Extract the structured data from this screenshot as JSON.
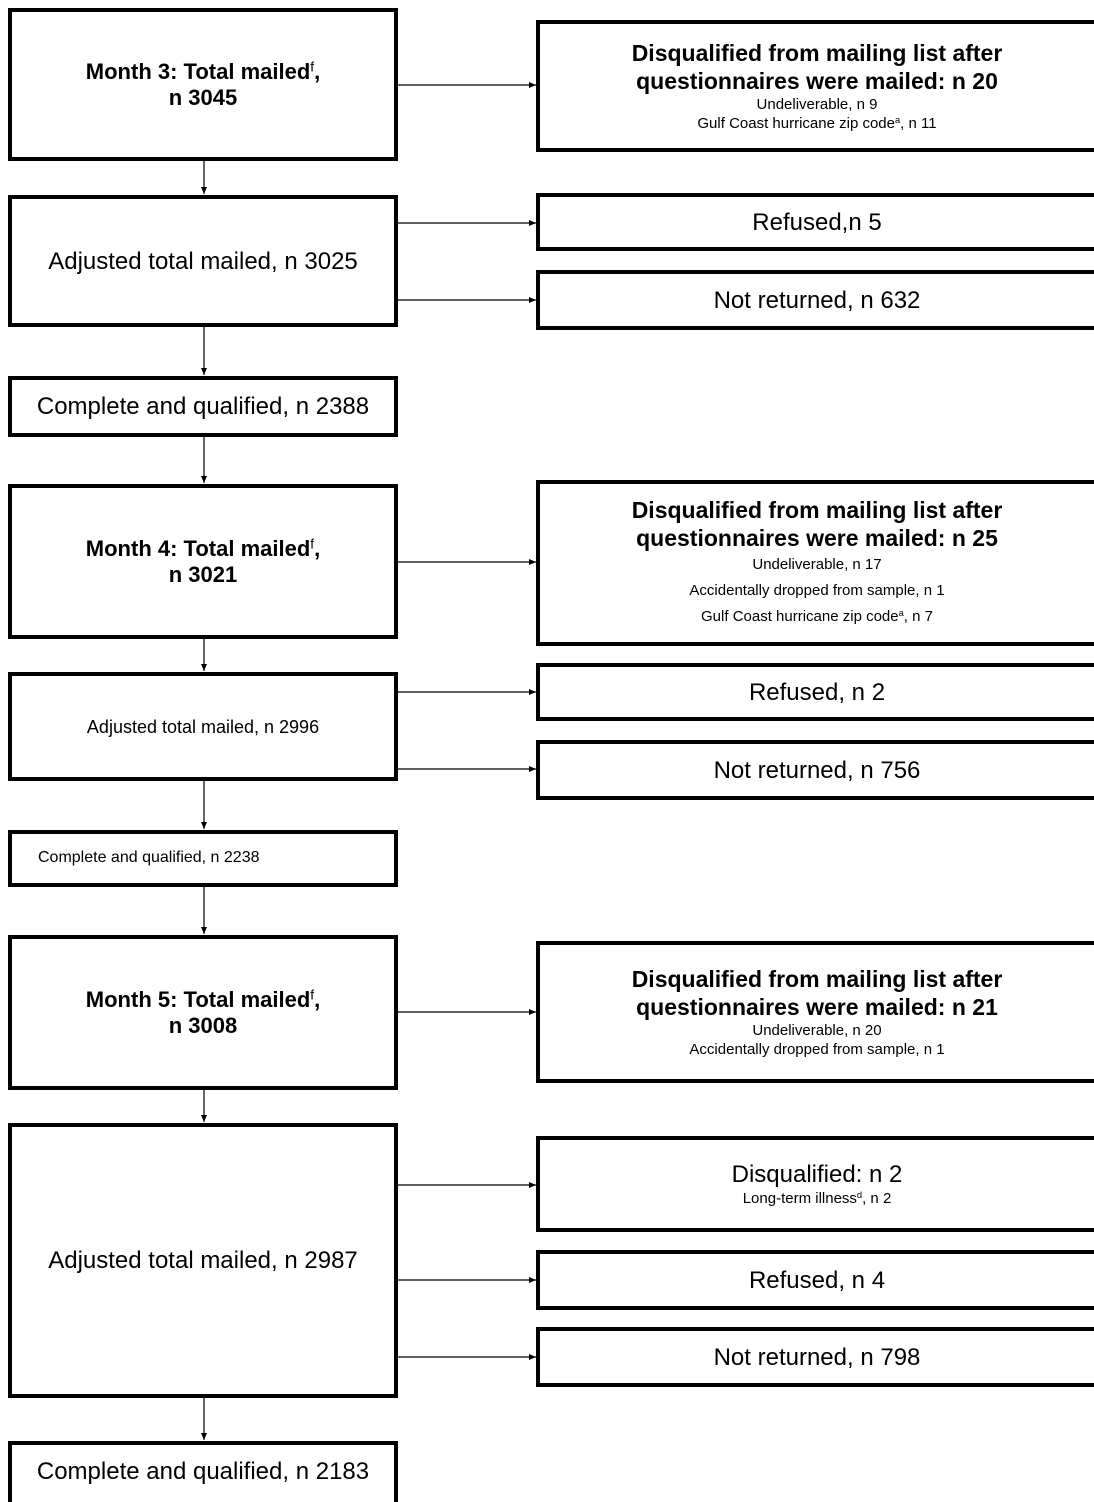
{
  "month3": {
    "total": {
      "label": "Month 3: Total mailed",
      "sup": "f",
      "suffix": ",",
      "n": "n 3045"
    },
    "disq": {
      "title1": "Disqualified from mailing list after",
      "title2": "questionnaires were mailed: n 20",
      "d1": "Undeliverable, n 9",
      "d2_text": "Gulf Coast hurricane zip code",
      "d2_sup": "a",
      "d2_n": ", n 11"
    },
    "adjusted": "Adjusted total mailed, n 3025",
    "refused": "Refused,n 5",
    "not_returned": "Not returned, n 632",
    "complete": "Complete and qualified, n 2388"
  },
  "month4": {
    "total": {
      "label": "Month 4: Total mailed",
      "sup": "f",
      "suffix": ",",
      "n": "n 3021"
    },
    "disq": {
      "title1": "Disqualified from mailing list after",
      "title2": "questionnaires were mailed: n 25",
      "d1": "Undeliverable, n 17",
      "d2": "Accidentally dropped from sample, n 1",
      "d3_text": "Gulf Coast hurricane zip code",
      "d3_sup": "a",
      "d3_n": ", n 7"
    },
    "adjusted": "Adjusted total mailed, n 2996",
    "refused": "Refused, n 2",
    "not_returned": "Not returned, n 756",
    "complete": "Complete and qualified, n 2238"
  },
  "month5": {
    "total": {
      "label": "Month 5: Total mailed",
      "sup": "f",
      "suffix": ",",
      "n": "n 3008"
    },
    "disq": {
      "title1": "Disqualified from mailing list after",
      "title2": "questionnaires were mailed: n 21",
      "d1": "Undeliverable, n 20",
      "d2": "Accidentally dropped from sample, n 1"
    },
    "disqualified_box": {
      "title": "Disqualified: n 2",
      "d1_text": "Long-term illness",
      "d1_sup": "d",
      "d1_n": ", n 2"
    },
    "adjusted": "Adjusted total mailed, n 2987",
    "refused": "Refused, n 4",
    "not_returned": "Not returned, n 798",
    "complete": "Complete and qualified, n 2183"
  }
}
